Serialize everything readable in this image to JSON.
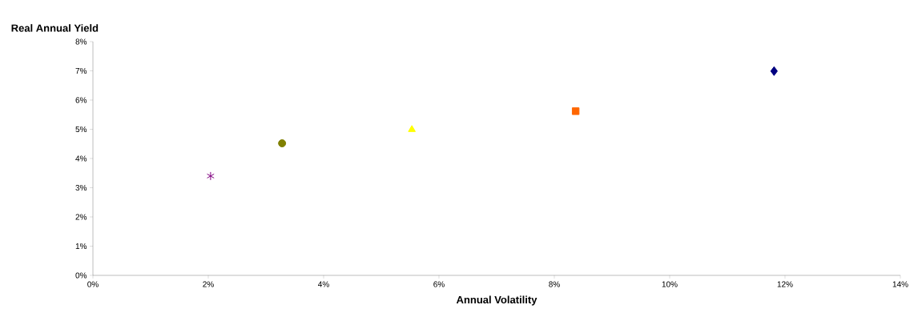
{
  "chart_data": {
    "type": "scatter",
    "xlabel": "Annual Volatility",
    "ylabel": "Real Annual Yield",
    "series": [
      {
        "color": "#800080",
        "marker": "cross",
        "x": [
          2.04
        ],
        "values": [
          3.4
        ]
      },
      {
        "color": "#808000",
        "marker": "circle",
        "x": [
          3.28
        ],
        "values": [
          4.52
        ]
      },
      {
        "color": "#ffff00",
        "marker": "triangle",
        "x": [
          5.53
        ],
        "values": [
          4.99
        ]
      },
      {
        "color": "#ff6600",
        "marker": "square",
        "x": [
          8.37
        ],
        "values": [
          5.62
        ]
      },
      {
        "color": "#000080",
        "marker": "diamond",
        "x": [
          11.81
        ],
        "values": [
          6.99
        ]
      }
    ],
    "xlim": [
      0,
      14
    ],
    "ylim": [
      0,
      8
    ],
    "xticks": [
      {
        "value": 0,
        "label": "0%"
      },
      {
        "value": 2,
        "label": "2%"
      },
      {
        "value": 4,
        "label": "4%"
      },
      {
        "value": 6,
        "label": "6%"
      },
      {
        "value": 8,
        "label": "8%"
      },
      {
        "value": 10,
        "label": "10%"
      },
      {
        "value": 12,
        "label": "12%"
      },
      {
        "value": 14,
        "label": "14%"
      }
    ],
    "yticks": [
      {
        "value": 0,
        "label": "0%"
      },
      {
        "value": 1,
        "label": "1%"
      },
      {
        "value": 2,
        "label": "2%"
      },
      {
        "value": 3,
        "label": "3%"
      },
      {
        "value": 4,
        "label": "4%"
      },
      {
        "value": 5,
        "label": "5%"
      },
      {
        "value": 6,
        "label": "6%"
      },
      {
        "value": 7,
        "label": "7%"
      },
      {
        "value": 8,
        "label": "8%"
      }
    ],
    "grid": false
  }
}
